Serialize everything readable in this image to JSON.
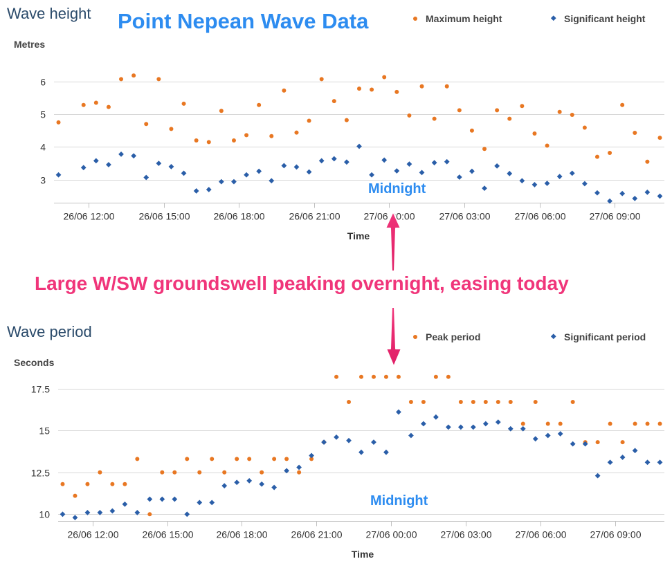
{
  "annotations": {
    "main_title": "Point Nepean Wave Data",
    "midnight_top": "Midnight",
    "midnight_bottom": "Midnight",
    "caption": "Large W/SW groundswell peaking overnight, easing today",
    "arrow_color": "#f0357a",
    "title_color": "#2d8cf0"
  },
  "chart_data": [
    {
      "type": "scatter",
      "title": "Wave height",
      "ylabel": "Metres",
      "xlabel": "Time",
      "ylim": [
        2.3,
        6.9
      ],
      "yticks": [
        3,
        4,
        5,
        6
      ],
      "xlim": [
        10.62,
        34.98
      ],
      "x_tick_values": [
        12,
        15,
        18,
        21,
        24,
        27,
        30,
        33
      ],
      "x_tick_labels": [
        "26/06 12:00",
        "26/06 15:00",
        "26/06 18:00",
        "26/06 21:00",
        "27/06 00:00",
        "27/06 03:00",
        "27/06 06:00",
        "27/06 09:00"
      ],
      "grid": true,
      "legend_position": "top-right",
      "series": [
        {
          "name": "Maximum height",
          "color": "#e87722",
          "marker": "circle",
          "x": [
            10.8,
            11.8,
            12.3,
            12.8,
            13.3,
            13.8,
            14.3,
            14.8,
            15.3,
            15.8,
            16.3,
            16.8,
            17.3,
            17.8,
            18.3,
            18.8,
            19.3,
            19.8,
            20.3,
            20.8,
            21.3,
            21.8,
            22.3,
            22.8,
            23.3,
            23.8,
            24.3,
            24.8,
            25.3,
            25.8,
            26.3,
            26.8,
            27.3,
            27.8,
            28.3,
            28.8,
            29.3,
            29.8,
            30.3,
            30.8,
            31.3,
            31.8,
            32.3,
            32.8,
            33.3,
            33.8,
            34.3,
            34.8
          ],
          "y": [
            4.75,
            5.28,
            5.35,
            5.22,
            6.07,
            6.18,
            4.7,
            6.07,
            4.55,
            5.32,
            4.2,
            4.15,
            5.1,
            4.2,
            4.36,
            5.28,
            4.33,
            5.72,
            4.44,
            4.8,
            6.07,
            5.4,
            4.82,
            5.78,
            5.75,
            6.13,
            5.68,
            4.96,
            5.85,
            4.86,
            5.85,
            5.12,
            4.5,
            3.94,
            5.12,
            4.86,
            5.25,
            4.41,
            4.04,
            5.07,
            4.98,
            4.59,
            3.7,
            3.82,
            5.28,
            4.43,
            3.55,
            4.28
          ]
        },
        {
          "name": "Significant height",
          "color": "#2a5ea8",
          "marker": "diamond",
          "x": [
            10.8,
            11.8,
            12.3,
            12.8,
            13.3,
            13.8,
            14.3,
            14.8,
            15.3,
            15.8,
            16.3,
            16.8,
            17.3,
            17.8,
            18.3,
            18.8,
            19.3,
            19.8,
            20.3,
            20.8,
            21.3,
            21.8,
            22.3,
            22.8,
            23.3,
            23.8,
            24.3,
            24.8,
            25.3,
            25.8,
            26.3,
            26.8,
            27.3,
            27.8,
            28.3,
            28.8,
            29.3,
            29.8,
            30.3,
            30.8,
            31.3,
            31.8,
            32.3,
            32.8,
            33.3,
            33.8,
            34.3,
            34.8
          ],
          "y": [
            3.15,
            3.37,
            3.58,
            3.46,
            3.78,
            3.73,
            3.07,
            3.5,
            3.4,
            3.2,
            2.66,
            2.7,
            2.94,
            2.94,
            3.15,
            3.26,
            2.97,
            3.43,
            3.39,
            3.24,
            3.58,
            3.64,
            3.54,
            4.02,
            3.15,
            3.6,
            3.27,
            3.48,
            3.22,
            3.52,
            3.55,
            3.08,
            3.26,
            2.74,
            3.42,
            3.19,
            2.97,
            2.85,
            2.89,
            3.1,
            3.2,
            2.88,
            2.6,
            2.35,
            2.58,
            2.43,
            2.62,
            2.5
          ]
        }
      ]
    },
    {
      "type": "scatter",
      "title": "Wave period",
      "ylabel": "Seconds",
      "xlabel": "Time",
      "ylim": [
        9.6,
        18.6
      ],
      "yticks": [
        10,
        12.5,
        15,
        17.5
      ],
      "ytick_labels": [
        "10",
        "12.5",
        "15",
        "17.5"
      ],
      "xlim": [
        10.62,
        34.98
      ],
      "x_tick_values": [
        12,
        15,
        18,
        21,
        24,
        27,
        30,
        33
      ],
      "x_tick_labels": [
        "26/06 12:00",
        "26/06 15:00",
        "26/06 18:00",
        "26/06 21:00",
        "27/06 00:00",
        "27/06 03:00",
        "27/06 06:00",
        "27/06 09:00"
      ],
      "grid": true,
      "legend_position": "top-right",
      "series": [
        {
          "name": "Peak period",
          "color": "#e87722",
          "marker": "circle",
          "x": [
            10.8,
            11.3,
            11.8,
            12.3,
            12.8,
            13.3,
            13.8,
            14.3,
            14.8,
            15.3,
            15.8,
            16.3,
            16.8,
            17.3,
            17.8,
            18.3,
            18.8,
            19.3,
            19.8,
            20.3,
            20.8,
            21.3,
            21.8,
            22.3,
            22.8,
            23.3,
            23.8,
            24.3,
            24.8,
            25.3,
            25.8,
            26.3,
            26.8,
            27.3,
            27.8,
            28.3,
            28.8,
            29.3,
            29.8,
            30.3,
            30.8,
            31.3,
            31.8,
            32.3,
            32.8,
            33.3,
            33.8,
            34.3,
            34.8
          ],
          "y": [
            11.8,
            11.1,
            11.8,
            12.5,
            11.8,
            11.8,
            13.3,
            10.0,
            12.5,
            12.5,
            13.3,
            12.5,
            13.3,
            12.5,
            13.3,
            13.3,
            12.5,
            13.3,
            13.3,
            12.5,
            13.3,
            14.3,
            18.2,
            16.7,
            18.2,
            18.2,
            18.2,
            18.2,
            16.7,
            16.7,
            18.2,
            18.2,
            16.7,
            16.7,
            16.7,
            16.7,
            16.7,
            15.4,
            16.7,
            15.4,
            15.4,
            16.7,
            14.3,
            14.3,
            15.4,
            14.3,
            15.4,
            15.4,
            15.4
          ],
          "x_fix": true
        },
        {
          "name": "Significant period",
          "color": "#2a5ea8",
          "marker": "diamond",
          "x": [
            10.8,
            11.3,
            11.8,
            12.3,
            12.8,
            13.3,
            13.8,
            14.3,
            14.8,
            15.3,
            15.8,
            16.3,
            16.8,
            17.3,
            17.8,
            18.3,
            18.8,
            19.3,
            19.8,
            20.3,
            20.8,
            21.3,
            21.8,
            22.3,
            22.8,
            23.3,
            23.8,
            24.3,
            24.8,
            25.3,
            25.8,
            26.3,
            26.8,
            27.3,
            27.8,
            28.3,
            28.8,
            29.3,
            29.8,
            30.3,
            30.8,
            31.3,
            31.8,
            32.3,
            32.8,
            33.3,
            33.8,
            34.3,
            34.8
          ],
          "y": [
            10.0,
            9.8,
            10.1,
            10.1,
            10.2,
            10.6,
            10.1,
            10.9,
            10.9,
            10.9,
            10.0,
            10.7,
            10.7,
            11.7,
            11.9,
            12.0,
            11.8,
            11.6,
            12.6,
            12.8,
            13.5,
            14.3,
            14.6,
            14.4,
            13.7,
            14.3,
            13.7,
            16.1,
            14.7,
            15.4,
            15.8,
            15.2,
            15.2,
            15.2,
            15.4,
            15.5,
            15.1,
            15.1,
            14.5,
            14.7,
            14.8,
            14.2,
            14.2,
            12.3,
            13.1,
            13.4,
            13.8,
            13.1,
            13.1
          ]
        }
      ]
    }
  ]
}
